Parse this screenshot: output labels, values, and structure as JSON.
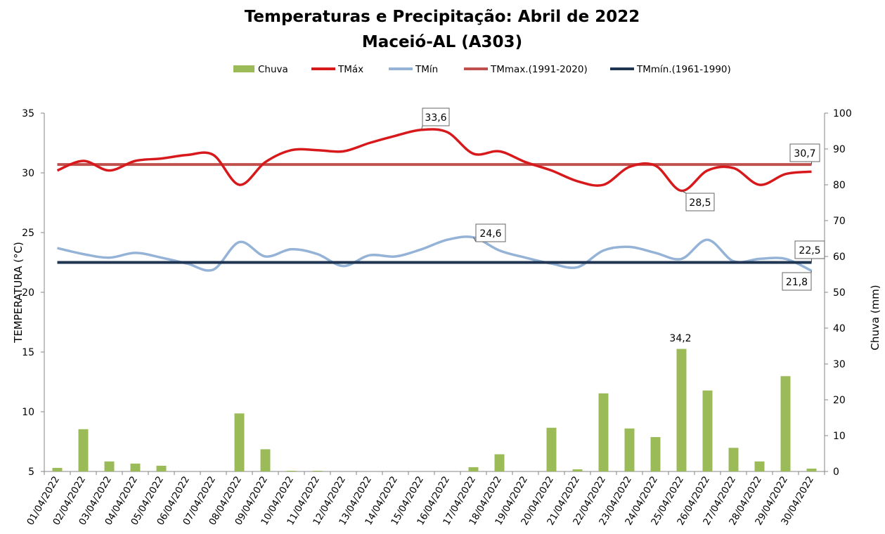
{
  "chart_data": {
    "type": "bar+line",
    "title": "Temperaturas e Precipitação: Abril de 2022",
    "subtitle": "Maceió-AL (A303)",
    "ylabel_left": "TEMPERATURA (°C)",
    "ylabel_right": "Chuva (mm)",
    "ylim_left": [
      5,
      35
    ],
    "ylim_right": [
      0,
      100
    ],
    "yticks_left": [
      "5",
      "10",
      "15",
      "20",
      "25",
      "30",
      "35"
    ],
    "yticks_right": [
      "0",
      "10",
      "20",
      "30",
      "40",
      "50",
      "60",
      "70",
      "80",
      "90",
      "100"
    ],
    "categories": [
      "01/04/2022",
      "02/04/2022",
      "03/04/2022",
      "04/04/2022",
      "05/04/2022",
      "06/04/2022",
      "07/04/2022",
      "08/04/2022",
      "09/04/2022",
      "10/04/2022",
      "11/04/2022",
      "12/04/2022",
      "13/04/2022",
      "14/04/2022",
      "15/04/2022",
      "16/04/2022",
      "17/04/2022",
      "18/04/2022",
      "19/04/2022",
      "20/04/2022",
      "21/04/2022",
      "22/04/2022",
      "23/04/2022",
      "24/04/2022",
      "25/04/2022",
      "26/04/2022",
      "27/04/2022",
      "28/04/2022",
      "29/04/2022",
      "30/04/2022"
    ],
    "legend": [
      "Chuva",
      "TMáx",
      "TMín",
      "TMmax.(1991-2020)",
      "TMmín.(1961-1990)"
    ],
    "series": [
      {
        "name": "Chuva",
        "axis": "right",
        "kind": "bar",
        "color": "#9bbb59",
        "values": [
          1.0,
          11.8,
          2.8,
          2.2,
          1.6,
          0,
          0,
          16.2,
          6.2,
          0.2,
          0.2,
          0,
          0,
          0,
          0,
          0,
          1.2,
          4.8,
          0,
          12.2,
          0.6,
          21.8,
          12.0,
          9.6,
          34.2,
          22.6,
          6.6,
          2.8,
          26.6,
          0.8
        ]
      },
      {
        "name": "TMáx",
        "axis": "left",
        "kind": "line",
        "color": "#d7191c",
        "values": [
          30.2,
          31.0,
          30.2,
          31.0,
          31.2,
          31.5,
          31.5,
          29.0,
          30.9,
          31.9,
          31.9,
          31.8,
          32.5,
          33.1,
          33.6,
          33.4,
          31.6,
          31.8,
          30.9,
          30.2,
          29.3,
          29.0,
          30.5,
          30.6,
          28.5,
          30.2,
          30.4,
          29.0,
          29.9,
          30.1
        ]
      },
      {
        "name": "TMín",
        "axis": "left",
        "kind": "line",
        "color": "#95b3d7",
        "values": [
          23.7,
          23.2,
          22.9,
          23.3,
          22.9,
          22.4,
          21.9,
          24.2,
          23.0,
          23.6,
          23.2,
          22.2,
          23.1,
          23.0,
          23.6,
          24.4,
          24.6,
          23.5,
          22.9,
          22.4,
          22.1,
          23.5,
          23.8,
          23.3,
          22.8,
          24.4,
          22.6,
          22.8,
          22.8,
          21.8
        ]
      },
      {
        "name": "TMmax.(1991-2020)",
        "axis": "left",
        "kind": "line",
        "color": "#c0504d",
        "value": 30.7
      },
      {
        "name": "TMmín.(1961-1990)",
        "axis": "left",
        "kind": "line",
        "color": "#1f3552",
        "value": 22.5
      }
    ],
    "annotations": [
      {
        "text": "33,6",
        "series": "TMáx",
        "index": 14
      },
      {
        "text": "28,5",
        "series": "TMáx",
        "index": 24
      },
      {
        "text": "30,7",
        "series": "TMmax.(1991-2020)",
        "index": 29
      },
      {
        "text": "24,6",
        "series": "TMín",
        "index": 16
      },
      {
        "text": "22,5",
        "series": "TMmín.(1961-1990)",
        "index": 29
      },
      {
        "text": "21,8",
        "series": "TMín",
        "index": 29
      },
      {
        "text": "34,2",
        "series": "Chuva",
        "index": 24
      }
    ]
  }
}
